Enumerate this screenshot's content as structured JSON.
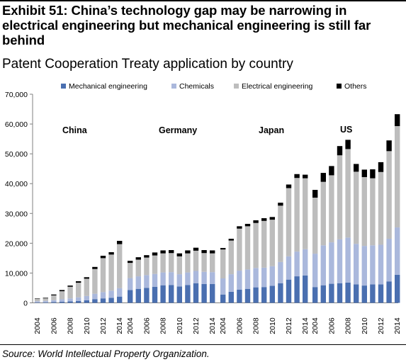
{
  "title": "Exhibit 51: China’s technology gap may be narrowing in electrical engineering but mechanical engineering is still far behind",
  "subtitle": "Patent Cooperation Treaty application by country",
  "source": "Source: World Intellectual Property Organization.",
  "colors": {
    "mechanical": "#4a6fb0",
    "chemicals": "#aab8dc",
    "electrical": "#bdbdbd",
    "others": "#000000",
    "axis": "#808080"
  },
  "chart_data": {
    "type": "bar",
    "stacked": true,
    "title": "",
    "xlabel": "",
    "ylabel": "",
    "ylim": [
      0,
      70000
    ],
    "yticks": [
      "0",
      "10,000",
      "20,000",
      "30,000",
      "40,000",
      "50,000",
      "60,000",
      "70,000"
    ],
    "grid": false,
    "legend_position": "top",
    "legend": [
      "Mechanical engineering",
      "Chemicals",
      "Electrical engineering",
      "Others"
    ],
    "years": [
      "2004",
      "2005",
      "2006",
      "2007",
      "2008",
      "2009",
      "2010",
      "2011",
      "2012",
      "2013",
      "2014"
    ],
    "xtick_labels": [
      "2004",
      "2006",
      "2008",
      "2010",
      "2012",
      "2014"
    ],
    "groups": [
      {
        "label": "China",
        "series": [
          {
            "name": "Mechanical engineering",
            "values": [
              100,
              150,
              250,
              350,
              500,
              650,
              850,
              1250,
              1500,
              1700,
              2100
            ]
          },
          {
            "name": "Chemicals",
            "values": [
              450,
              500,
              650,
              850,
              1000,
              1200,
              1450,
              1800,
              2100,
              2400,
              2800
            ]
          },
          {
            "name": "Electrical engineering",
            "values": [
              750,
              850,
              1600,
              2700,
              3900,
              4900,
              5800,
              8300,
              11400,
              12100,
              14800
            ]
          },
          {
            "name": "Others",
            "values": [
              150,
              200,
              300,
              400,
              400,
              500,
              500,
              700,
              800,
              800,
              1100
            ]
          }
        ]
      },
      {
        "label": "Germany",
        "series": [
          {
            "name": "Mechanical engineering",
            "values": [
              4300,
              4700,
              5000,
              5400,
              5900,
              6000,
              5500,
              6000,
              6600,
              6300,
              6300
            ]
          },
          {
            "name": "Chemicals",
            "values": [
              4000,
              4200,
              4300,
              4300,
              4300,
              4300,
              4100,
              4200,
              4100,
              4100,
              4000
            ]
          },
          {
            "name": "Electrical engineering",
            "values": [
              5100,
              5600,
              5900,
              6200,
              6400,
              6400,
              6000,
              6400,
              6800,
              6300,
              6300
            ]
          },
          {
            "name": "Others",
            "values": [
              700,
              800,
              800,
              1000,
              1000,
              1000,
              1000,
              1000,
              1000,
              1000,
              1000
            ]
          }
        ]
      },
      {
        "label": "Japan",
        "series": [
          {
            "name": "Mechanical engineering",
            "values": [
              2800,
              3700,
              4400,
              4700,
              5200,
              5300,
              5700,
              6600,
              7800,
              8900,
              9200
            ]
          },
          {
            "name": "Chemicals",
            "values": [
              5400,
              5900,
              6400,
              6500,
              6500,
              6500,
              6600,
              7100,
              7800,
              8300,
              8800
            ]
          },
          {
            "name": "Electrical engineering",
            "values": [
              9700,
              11300,
              14100,
              14500,
              15100,
              15700,
              15600,
              18900,
              22900,
              24700,
              23800
            ]
          },
          {
            "name": "Others",
            "values": [
              500,
              600,
              800,
              800,
              900,
              900,
              900,
              1000,
              1200,
              1300,
              1200
            ]
          }
        ]
      },
      {
        "label": "US",
        "series": [
          {
            "name": "Mechanical engineering",
            "values": [
              5300,
              5900,
              6400,
              6600,
              6800,
              6200,
              5800,
              6200,
              6200,
              7200,
              9400
            ]
          },
          {
            "name": "Chemicals",
            "values": [
              11200,
              13400,
              13900,
              14700,
              15100,
              13600,
              13300,
              13100,
              13300,
              14300,
              15900
            ]
          },
          {
            "name": "Electrical engineering",
            "values": [
              18800,
              21300,
              22500,
              28200,
              29700,
              24200,
              23100,
              22500,
              24400,
              29400,
              34000
            ]
          },
          {
            "name": "Others",
            "values": [
              2600,
              3000,
              3100,
              3100,
              3100,
              2600,
              2500,
              3000,
              3300,
              3600,
              4000
            ]
          }
        ]
      }
    ]
  }
}
